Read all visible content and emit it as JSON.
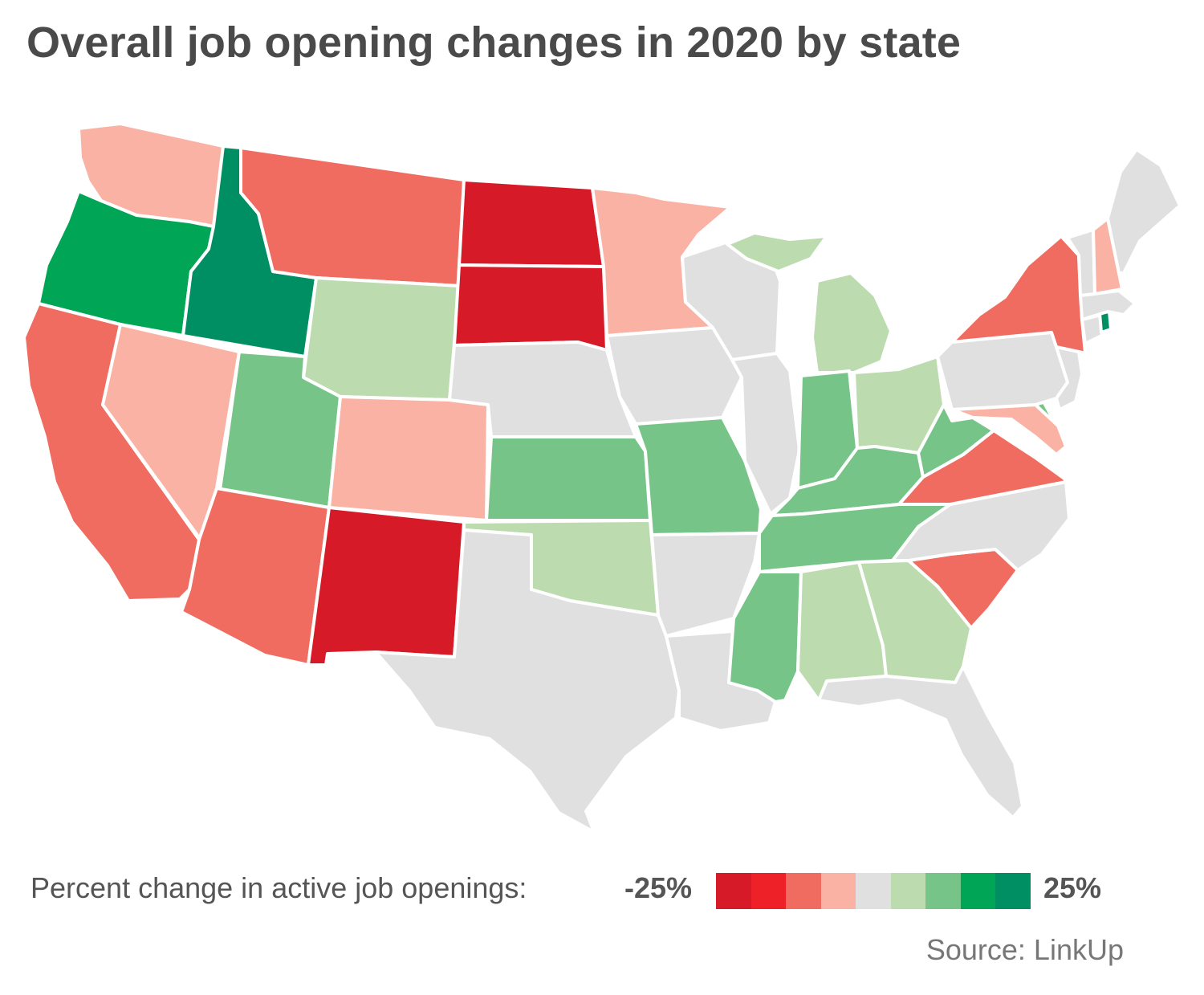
{
  "title": "Overall job opening changes in 2020 by state",
  "legend": {
    "label": "Percent change in active job openings:",
    "min_label": "-25%",
    "max_label": "25%",
    "scale_colors": [
      "#d71a28",
      "#ee2128",
      "#f06c60",
      "#f9b2a4",
      "#e0e0e0",
      "#bcdbaf",
      "#77c489",
      "#00a555",
      "#008f62"
    ]
  },
  "source": "Source: LinkUp",
  "map_data": {
    "type": "choropleth",
    "states": [
      {
        "id": "WA",
        "class": 3
      },
      {
        "id": "OR",
        "class": 7
      },
      {
        "id": "CA",
        "class": 2
      },
      {
        "id": "ID",
        "class": 8
      },
      {
        "id": "NV",
        "class": 3
      },
      {
        "id": "MT",
        "class": 2
      },
      {
        "id": "WY",
        "class": 5
      },
      {
        "id": "UT",
        "class": 6
      },
      {
        "id": "AZ",
        "class": 2
      },
      {
        "id": "CO",
        "class": 3
      },
      {
        "id": "NM",
        "class": 0
      },
      {
        "id": "ND",
        "class": 0
      },
      {
        "id": "SD",
        "class": 0
      },
      {
        "id": "NE",
        "class": 4
      },
      {
        "id": "KS",
        "class": 6
      },
      {
        "id": "OK",
        "class": 5
      },
      {
        "id": "TX",
        "class": 4
      },
      {
        "id": "MN",
        "class": 3
      },
      {
        "id": "IA",
        "class": 4
      },
      {
        "id": "MO",
        "class": 6
      },
      {
        "id": "AR",
        "class": 4
      },
      {
        "id": "LA",
        "class": 4
      },
      {
        "id": "WI",
        "class": 4
      },
      {
        "id": "IL",
        "class": 4
      },
      {
        "id": "MI-UP",
        "class": 5
      },
      {
        "id": "MI",
        "class": 5
      },
      {
        "id": "IN",
        "class": 6
      },
      {
        "id": "OH",
        "class": 5
      },
      {
        "id": "KY",
        "class": 6
      },
      {
        "id": "TN",
        "class": 6
      },
      {
        "id": "MS",
        "class": 6
      },
      {
        "id": "AL",
        "class": 5
      },
      {
        "id": "GA",
        "class": 5
      },
      {
        "id": "FL",
        "class": 4
      },
      {
        "id": "SC",
        "class": 2
      },
      {
        "id": "NC",
        "class": 4
      },
      {
        "id": "VA",
        "class": 2
      },
      {
        "id": "WV",
        "class": 6
      },
      {
        "id": "MD",
        "class": 3
      },
      {
        "id": "DE",
        "class": 6
      },
      {
        "id": "PA",
        "class": 4
      },
      {
        "id": "NJ",
        "class": 4
      },
      {
        "id": "NY",
        "class": 2
      },
      {
        "id": "CT",
        "class": 4
      },
      {
        "id": "RI",
        "class": 8
      },
      {
        "id": "MA",
        "class": 4
      },
      {
        "id": "VT",
        "class": 4
      },
      {
        "id": "NH",
        "class": 3
      },
      {
        "id": "ME",
        "class": 4
      }
    ]
  }
}
